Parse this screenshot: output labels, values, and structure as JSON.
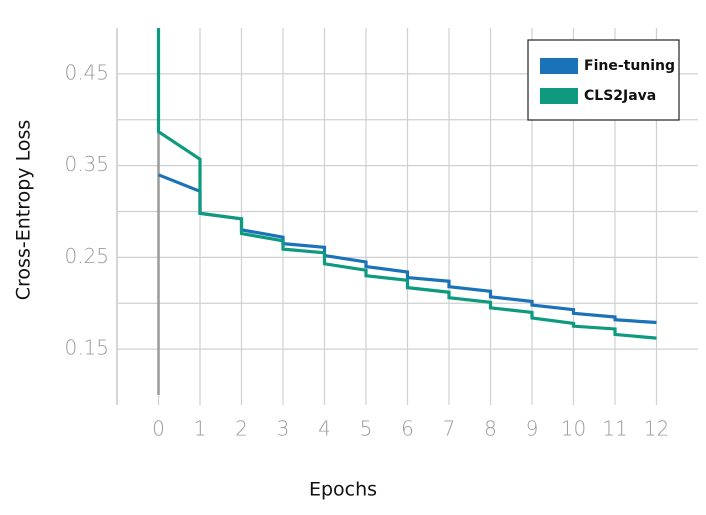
{
  "chart_data": {
    "type": "step-line",
    "xlabel": "Epochs",
    "ylabel": "Cross-Entropy Loss",
    "xlim": [
      -1,
      13
    ],
    "xticks": [
      0,
      1,
      2,
      3,
      4,
      5,
      6,
      7,
      8,
      9,
      10,
      11,
      12
    ],
    "ylim": [
      0.1,
      0.5
    ],
    "yticks": [
      0.15,
      0.25,
      0.35,
      0.45
    ],
    "ygrid": [
      0.15,
      0.2,
      0.25,
      0.3,
      0.35,
      0.4,
      0.45
    ],
    "vline": 0,
    "grid": true,
    "legend": "upper right",
    "series": [
      {
        "name": "Fine-tuning",
        "color": "#1a73b8",
        "x": [
          0,
          1,
          1,
          2,
          2,
          3,
          3,
          4,
          4,
          5,
          5,
          6,
          6,
          7,
          7,
          8,
          8,
          9,
          9,
          10,
          10,
          11,
          11,
          12
        ],
        "values": [
          0.34,
          0.322,
          0.298,
          0.292,
          0.28,
          0.272,
          0.265,
          0.261,
          0.252,
          0.245,
          0.24,
          0.234,
          0.228,
          0.224,
          0.218,
          0.213,
          0.207,
          0.202,
          0.198,
          0.193,
          0.189,
          0.185,
          0.182,
          0.179
        ]
      },
      {
        "name": "CLS2Java",
        "color": "#0d9a7e",
        "x": [
          0,
          0,
          1,
          1,
          2,
          2,
          3,
          3,
          4,
          4,
          5,
          5,
          6,
          6,
          7,
          7,
          8,
          8,
          9,
          9,
          10,
          10,
          11,
          11,
          12
        ],
        "values": [
          0.5,
          0.387,
          0.357,
          0.298,
          0.292,
          0.276,
          0.268,
          0.259,
          0.255,
          0.243,
          0.236,
          0.23,
          0.225,
          0.217,
          0.212,
          0.206,
          0.201,
          0.195,
          0.19,
          0.184,
          0.178,
          0.175,
          0.172,
          0.166,
          0.162
        ]
      }
    ]
  }
}
